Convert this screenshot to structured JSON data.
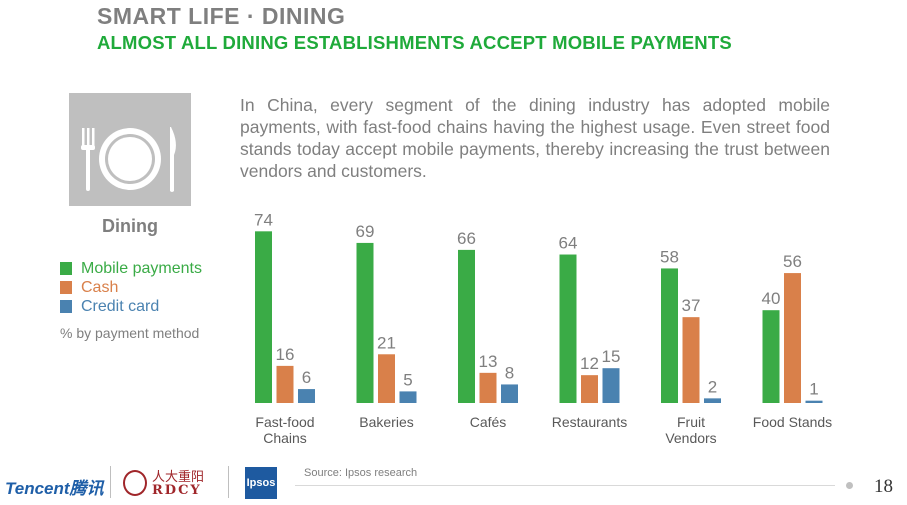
{
  "header": {
    "title": "SMART LIFE · DINING",
    "subtitle": "ALMOST ALL DINING ESTABLISHMENTS ACCEPT MOBILE PAYMENTS"
  },
  "icon": {
    "name": "dining-icon",
    "label": "Dining"
  },
  "paragraph": "In China, every segment of the dining industry has adopted mobile payments, with fast-food chains having the highest usage. Even street food stands today accept mobile payments, thereby increasing the trust between vendors and customers.",
  "legend": {
    "items": [
      "Mobile payments",
      "Cash",
      "Credit card"
    ],
    "note": "% by payment method"
  },
  "colors": {
    "mobile": "#3aab46",
    "cash": "#d9804a",
    "credit": "#4a82b0",
    "mobile_text": "#3aab46",
    "cash_text": "#d9804a",
    "credit_text": "#4a82b0"
  },
  "chart_data": {
    "type": "bar",
    "categories": [
      "Fast-food\nChains",
      "Bakeries",
      "Cafés",
      "Restaurants",
      "Fruit\nVendors",
      "Food Stands"
    ],
    "series": [
      {
        "name": "Mobile payments",
        "values": [
          74,
          69,
          66,
          64,
          58,
          40
        ]
      },
      {
        "name": "Cash",
        "values": [
          16,
          21,
          13,
          12,
          37,
          56
        ]
      },
      {
        "name": "Credit card",
        "values": [
          6,
          5,
          8,
          15,
          2,
          1
        ]
      }
    ],
    "ylim": [
      0,
      80
    ],
    "grid": false,
    "legend_position": "left"
  },
  "footer": {
    "source": "Source: Ipsos research",
    "page_number": "18",
    "logos": {
      "tencent": "Tencent腾讯",
      "rdcy_cn": "人大重阳",
      "rdcy": "RDCY",
      "ipsos": "Ipsos"
    }
  }
}
